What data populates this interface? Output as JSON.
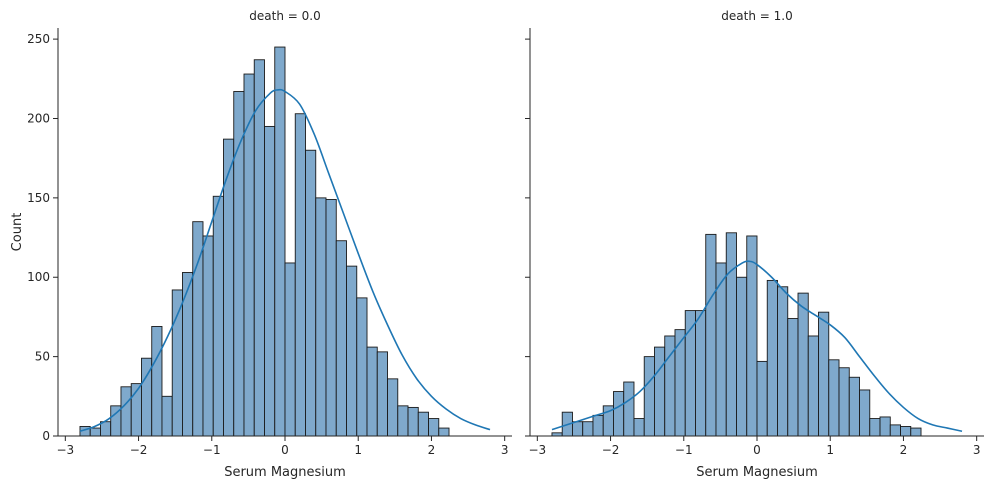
{
  "chart_data": {
    "type": "histogram",
    "ylabel": "Count",
    "xlim": [
      -3.1,
      3.1
    ],
    "ylim": [
      0,
      257
    ],
    "xticks": [
      -3,
      -2,
      -1,
      0,
      1,
      2,
      3
    ],
    "yticks": [
      0,
      50,
      100,
      150,
      200,
      250
    ],
    "bar_color": "#7fa9cc",
    "bar_edge_color": "#1a1a1a",
    "kde_color": "#1f77b4",
    "grid": false,
    "legend": "none",
    "bin_start": -2.8,
    "bin_width": 0.14,
    "panels": [
      {
        "title": "death = 0.0",
        "xlabel": "Serum Magnesium",
        "counts": [
          6,
          5,
          9,
          19,
          31,
          33,
          49,
          69,
          25,
          92,
          103,
          135,
          126,
          151,
          187,
          217,
          228,
          237,
          195,
          245,
          109,
          203,
          180,
          150,
          149,
          123,
          107,
          87,
          56,
          53,
          36,
          19,
          18,
          15,
          11,
          5
        ],
        "kde": {
          "x": [
            -2.8,
            -2.6,
            -2.4,
            -2.2,
            -2.0,
            -1.8,
            -1.6,
            -1.4,
            -1.2,
            -1.0,
            -0.8,
            -0.6,
            -0.4,
            -0.2,
            -0.1,
            0.0,
            0.2,
            0.4,
            0.6,
            0.8,
            1.0,
            1.2,
            1.4,
            1.6,
            1.8,
            2.0,
            2.2,
            2.4,
            2.6,
            2.8
          ],
          "y": [
            3,
            6,
            11,
            19,
            30,
            45,
            63,
            84,
            108,
            135,
            162,
            186,
            205,
            216,
            218,
            217,
            209,
            190,
            165,
            140,
            115,
            91,
            70,
            51,
            36,
            25,
            17,
            11,
            7,
            4
          ]
        }
      },
      {
        "title": "death = 1.0",
        "xlabel": "Serum Magnesium",
        "counts": [
          2,
          15,
          9,
          9,
          13,
          19,
          28,
          34,
          11,
          50,
          56,
          63,
          67,
          79,
          79,
          127,
          109,
          128,
          100,
          126,
          47,
          98,
          94,
          74,
          90,
          63,
          78,
          48,
          43,
          37,
          29,
          11,
          12,
          7,
          6,
          5
        ],
        "kde": {
          "x": [
            -2.8,
            -2.6,
            -2.4,
            -2.2,
            -2.0,
            -1.8,
            -1.6,
            -1.4,
            -1.2,
            -1.0,
            -0.8,
            -0.6,
            -0.4,
            -0.2,
            -0.1,
            0.0,
            0.2,
            0.4,
            0.6,
            0.8,
            1.0,
            1.2,
            1.4,
            1.6,
            1.8,
            2.0,
            2.2,
            2.4,
            2.6,
            2.8
          ],
          "y": [
            4,
            7,
            10,
            13,
            16,
            21,
            28,
            38,
            50,
            62,
            74,
            89,
            102,
            109,
            110,
            108,
            100,
            90,
            82,
            76,
            70,
            62,
            50,
            38,
            27,
            18,
            11,
            7,
            5,
            3
          ]
        }
      }
    ]
  }
}
